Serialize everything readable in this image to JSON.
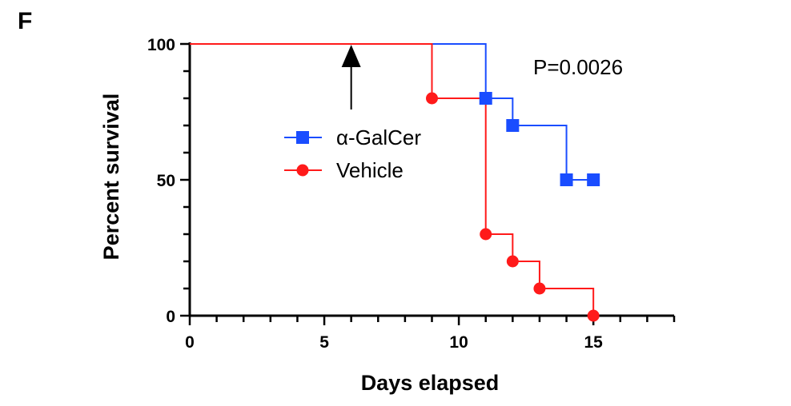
{
  "panel_label": "F",
  "chart_data": {
    "type": "line",
    "subtype": "kaplan-meier step survival",
    "title": "",
    "xlabel": "Days elapsed",
    "ylabel": "Percent survival",
    "xlim": [
      0,
      18
    ],
    "ylim": [
      0,
      100
    ],
    "x_ticks": [
      0,
      5,
      10,
      15
    ],
    "y_ticks": [
      0,
      50,
      100
    ],
    "x_minor_step": 1,
    "y_minor_step": 10,
    "legend_position": "center-left",
    "annotation": "P=0.0026",
    "treatment_arrow_day": 6,
    "series": [
      {
        "name": "α-GalCer",
        "color": "#1a4dff",
        "marker": "square",
        "steps": [
          [
            0,
            100
          ],
          [
            11,
            80
          ],
          [
            12,
            70
          ],
          [
            14,
            50
          ],
          [
            15,
            50
          ]
        ],
        "markers": [
          [
            11,
            80
          ],
          [
            12,
            70
          ],
          [
            14,
            50
          ],
          [
            15,
            50
          ]
        ]
      },
      {
        "name": "Vehicle",
        "color": "#ff1a1a",
        "marker": "circle",
        "steps": [
          [
            0,
            100
          ],
          [
            9,
            80
          ],
          [
            11,
            30
          ],
          [
            12,
            20
          ],
          [
            13,
            10
          ],
          [
            15,
            0
          ]
        ],
        "markers": [
          [
            9,
            80
          ],
          [
            11,
            30
          ],
          [
            12,
            20
          ],
          [
            13,
            10
          ],
          [
            15,
            0
          ]
        ]
      }
    ]
  }
}
